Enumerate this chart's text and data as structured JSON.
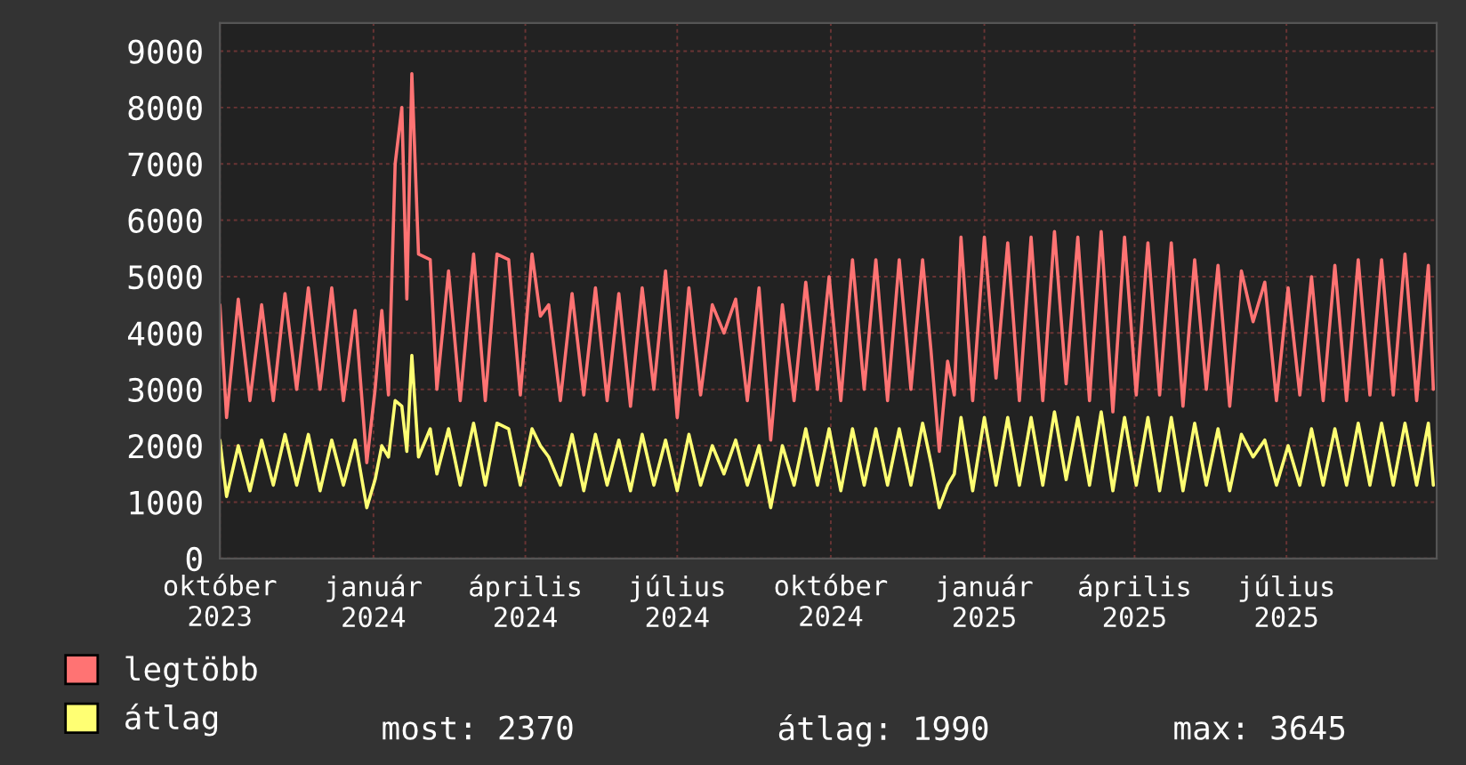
{
  "chart_data": {
    "type": "line",
    "xlim": [
      "2023-10-01",
      "2025-09-29"
    ],
    "xticks": [
      {
        "value": "2023-10-01",
        "label": "október 2023"
      },
      {
        "value": "2024-01-01",
        "label": "január 2024"
      },
      {
        "value": "2024-04-01",
        "label": "április 2024"
      },
      {
        "value": "2024-07-01",
        "label": "július 2024"
      },
      {
        "value": "2024-10-01",
        "label": "október 2024"
      },
      {
        "value": "2025-01-01",
        "label": "január 2025"
      },
      {
        "value": "2025-04-01",
        "label": "április 2025"
      },
      {
        "value": "2025-07-01",
        "label": "július 2025"
      }
    ],
    "ylim": [
      0,
      9500
    ],
    "yticks": [
      0,
      1000,
      2000,
      3000,
      4000,
      5000,
      6000,
      7000,
      8000,
      9000
    ],
    "grid": true,
    "legend": "bottom",
    "x": [
      "2023-10-01",
      "2023-10-05",
      "2023-10-12",
      "2023-10-19",
      "2023-10-26",
      "2023-11-02",
      "2023-11-09",
      "2023-11-16",
      "2023-11-23",
      "2023-11-30",
      "2023-12-07",
      "2023-12-14",
      "2023-12-21",
      "2023-12-28",
      "2024-01-02",
      "2024-01-06",
      "2024-01-10",
      "2024-01-14",
      "2024-01-18",
      "2024-01-21",
      "2024-01-24",
      "2024-01-28",
      "2024-02-04",
      "2024-02-08",
      "2024-02-15",
      "2024-02-22",
      "2024-03-01",
      "2024-03-08",
      "2024-03-15",
      "2024-03-22",
      "2024-03-29",
      "2024-04-05",
      "2024-04-10",
      "2024-04-15",
      "2024-04-22",
      "2024-04-29",
      "2024-05-06",
      "2024-05-13",
      "2024-05-20",
      "2024-05-27",
      "2024-06-03",
      "2024-06-10",
      "2024-06-17",
      "2024-06-24",
      "2024-07-01",
      "2024-07-08",
      "2024-07-15",
      "2024-07-22",
      "2024-07-29",
      "2024-08-05",
      "2024-08-12",
      "2024-08-19",
      "2024-08-26",
      "2024-09-02",
      "2024-09-09",
      "2024-09-16",
      "2024-09-23",
      "2024-09-30",
      "2024-10-07",
      "2024-10-14",
      "2024-10-21",
      "2024-10-28",
      "2024-11-04",
      "2024-11-11",
      "2024-11-18",
      "2024-11-25",
      "2024-11-30",
      "2024-12-05",
      "2024-12-10",
      "2024-12-14",
      "2024-12-18",
      "2024-12-25",
      "2025-01-01",
      "2025-01-08",
      "2025-01-15",
      "2025-01-22",
      "2025-01-29",
      "2025-02-05",
      "2025-02-12",
      "2025-02-19",
      "2025-02-26",
      "2025-03-05",
      "2025-03-12",
      "2025-03-19",
      "2025-03-26",
      "2025-04-02",
      "2025-04-09",
      "2025-04-16",
      "2025-04-23",
      "2025-04-30",
      "2025-05-07",
      "2025-05-14",
      "2025-05-21",
      "2025-05-28",
      "2025-06-04",
      "2025-06-11",
      "2025-06-18",
      "2025-06-25",
      "2025-07-02",
      "2025-07-09",
      "2025-07-16",
      "2025-07-23",
      "2025-07-30",
      "2025-08-06",
      "2025-08-13",
      "2025-08-20",
      "2025-08-27",
      "2025-09-03",
      "2025-09-10",
      "2025-09-17",
      "2025-09-24",
      "2025-09-27"
    ],
    "series": [
      {
        "name": "legtöbb",
        "color": "#ff7373",
        "values": [
          4500,
          2500,
          4600,
          2800,
          4500,
          2800,
          4700,
          3000,
          4800,
          3000,
          4800,
          2800,
          4400,
          1700,
          3000,
          4400,
          2900,
          7000,
          8000,
          4600,
          8600,
          5400,
          5300,
          3000,
          5100,
          2800,
          5400,
          2800,
          5400,
          5300,
          2900,
          5400,
          4300,
          4500,
          2800,
          4700,
          2900,
          4800,
          2800,
          4700,
          2700,
          4800,
          3000,
          5100,
          2500,
          4800,
          2900,
          4500,
          4000,
          4600,
          2800,
          4800,
          2100,
          4500,
          2800,
          4900,
          3000,
          5000,
          2800,
          5300,
          3000,
          5300,
          2800,
          5300,
          3000,
          5300,
          3700,
          1900,
          3500,
          2900,
          5700,
          2800,
          5700,
          3200,
          5600,
          2800,
          5700,
          2800,
          5800,
          3100,
          5700,
          2800,
          5800,
          2600,
          5700,
          2900,
          5600,
          2900,
          5600,
          2700,
          5300,
          3000,
          5200,
          2700,
          5100,
          4200,
          4900,
          2800,
          4800,
          2900,
          5000,
          2800,
          5200,
          2800,
          5300,
          2900,
          5300,
          2900,
          5400,
          2800,
          5200,
          3000
        ]
      },
      {
        "name": "átlag",
        "color": "#ffff73",
        "values": [
          2100,
          1100,
          2000,
          1200,
          2100,
          1300,
          2200,
          1300,
          2200,
          1200,
          2100,
          1300,
          2100,
          900,
          1400,
          2000,
          1800,
          2800,
          2700,
          1900,
          3600,
          1800,
          2300,
          1500,
          2300,
          1300,
          2400,
          1300,
          2400,
          2300,
          1300,
          2300,
          2000,
          1800,
          1300,
          2200,
          1200,
          2200,
          1300,
          2100,
          1200,
          2200,
          1300,
          2100,
          1200,
          2200,
          1300,
          2000,
          1500,
          2100,
          1300,
          2000,
          900,
          2000,
          1300,
          2300,
          1300,
          2300,
          1200,
          2300,
          1300,
          2300,
          1300,
          2300,
          1300,
          2400,
          1700,
          900,
          1300,
          1500,
          2500,
          1200,
          2500,
          1300,
          2500,
          1300,
          2500,
          1300,
          2600,
          1400,
          2500,
          1300,
          2600,
          1200,
          2500,
          1300,
          2500,
          1200,
          2500,
          1200,
          2400,
          1300,
          2300,
          1200,
          2200,
          1800,
          2100,
          1300,
          2000,
          1300,
          2300,
          1300,
          2300,
          1300,
          2400,
          1300,
          2400,
          1300,
          2400,
          1300,
          2400,
          1300
        ]
      }
    ],
    "annotations": [
      "most: 2370",
      "átlag: 1990",
      "max: 3645"
    ]
  }
}
